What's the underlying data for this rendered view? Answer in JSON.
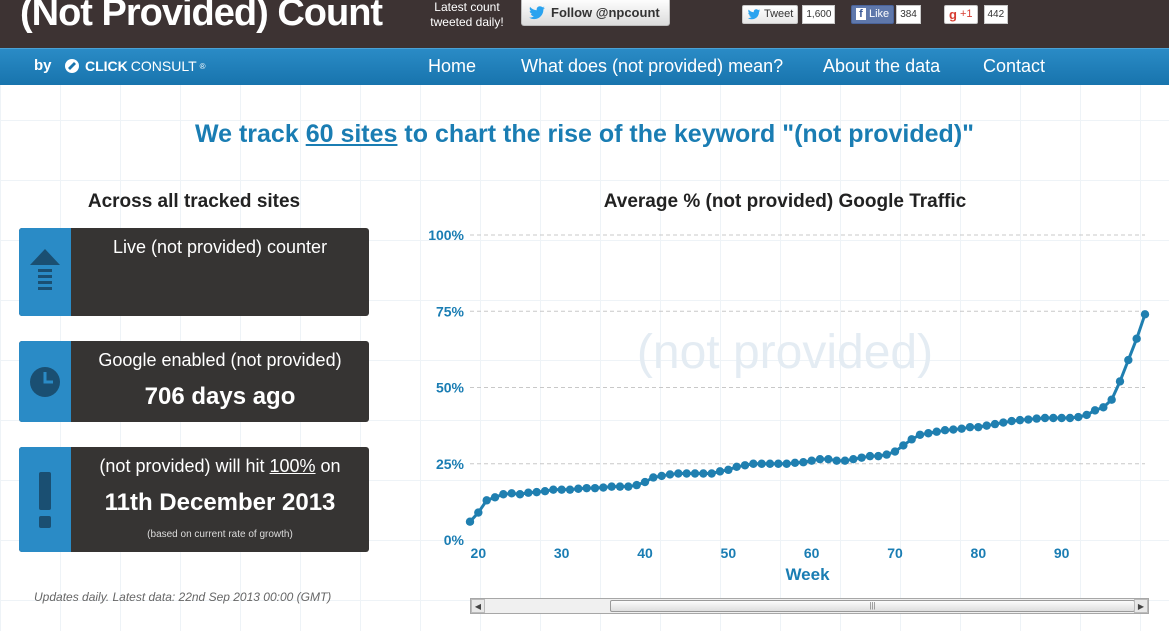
{
  "header": {
    "title": "(Not Provided) Count",
    "latest_count_line1": "Latest count",
    "latest_count_line2": "tweeted daily!",
    "follow_label": "Follow @npcount",
    "tweet_label": "Tweet",
    "tweet_count": "1,600",
    "like_label": "Like",
    "like_count": "384",
    "plus_label": "+1",
    "plus_count": "442"
  },
  "nav": {
    "by": "by",
    "brand_bold": "CLICK",
    "brand_light": "CONSULT",
    "brand_mark": "®",
    "items": [
      "Home",
      "What does (not provided) mean?",
      "About the data",
      "Contact"
    ]
  },
  "headline": {
    "pre": "We track ",
    "link": "60 sites",
    "post": " to chart the rise of the keyword \"(not provided)\""
  },
  "stats": {
    "title": "Across all tracked sites",
    "live_counter": "Live (not provided) counter",
    "enabled_label": "Google enabled (not provided)",
    "enabled_value": "706 days ago",
    "hit_pre": "(not provided) will hit ",
    "hit_link": "100%",
    "hit_post": " on",
    "hit_date": "11th December 2013",
    "hit_note": "(based on current rate of growth)",
    "updates": "Updates daily. Latest data: 22nd Sep 2013 00:00 (GMT)"
  },
  "colors": {
    "accent": "#1a7db3",
    "nav_blue": "#1874ad",
    "dark_bar": "#3d3333",
    "card_bg": "#363433",
    "line": "#1f7fb0"
  },
  "chart_data": {
    "type": "line",
    "title": "Average % (not provided) Google Traffic",
    "xlabel": "Week",
    "ylabel": "",
    "watermark": "(not provided)",
    "xlim": [
      19,
      100
    ],
    "ylim": [
      0,
      100
    ],
    "x_ticks": [
      20,
      30,
      40,
      50,
      60,
      70,
      80,
      90
    ],
    "y_ticks": [
      "0%",
      "25%",
      "50%",
      "75%",
      "100%"
    ],
    "y_tick_values": [
      0,
      25,
      50,
      75,
      100
    ],
    "grid": "horizontal-dashed",
    "series": [
      {
        "x": [
          19,
          20,
          21,
          22,
          23,
          24,
          25,
          26,
          27,
          28,
          29,
          30,
          31,
          32,
          33,
          34,
          35,
          36,
          37,
          38,
          39,
          40,
          41,
          42,
          43,
          44,
          45,
          46,
          47,
          48,
          49,
          50,
          51,
          52,
          53,
          54,
          55,
          56,
          57,
          58,
          59,
          60,
          61,
          62,
          63,
          64,
          65,
          66,
          67,
          68,
          69,
          70,
          71,
          72,
          73,
          74,
          75,
          76,
          77,
          78,
          79,
          80,
          81,
          82,
          83,
          84,
          85,
          86,
          87,
          88,
          89,
          90,
          91,
          92,
          93,
          94,
          95,
          96,
          97,
          98,
          99,
          100
        ],
        "values": [
          6,
          9,
          13,
          14,
          15,
          15.3,
          15,
          15.5,
          15.7,
          16,
          16.5,
          16.5,
          16.5,
          16.8,
          17,
          17,
          17.2,
          17.5,
          17.5,
          17.5,
          18,
          19,
          20.5,
          21,
          21.5,
          21.8,
          21.8,
          21.8,
          21.8,
          21.8,
          22.5,
          23,
          24,
          24.5,
          25,
          25,
          25,
          25,
          25,
          25.3,
          25.5,
          26,
          26.5,
          26.5,
          26,
          26,
          26.5,
          27,
          27.5,
          27.5,
          28,
          29,
          31,
          33,
          34.5,
          35,
          35.5,
          36,
          36.2,
          36.5,
          37,
          37,
          37.5,
          38,
          38.5,
          39,
          39.3,
          39.5,
          39.8,
          40,
          40,
          40,
          40,
          40.3,
          41,
          42.5,
          43.5,
          46,
          52,
          59,
          66,
          74
        ]
      }
    ]
  }
}
